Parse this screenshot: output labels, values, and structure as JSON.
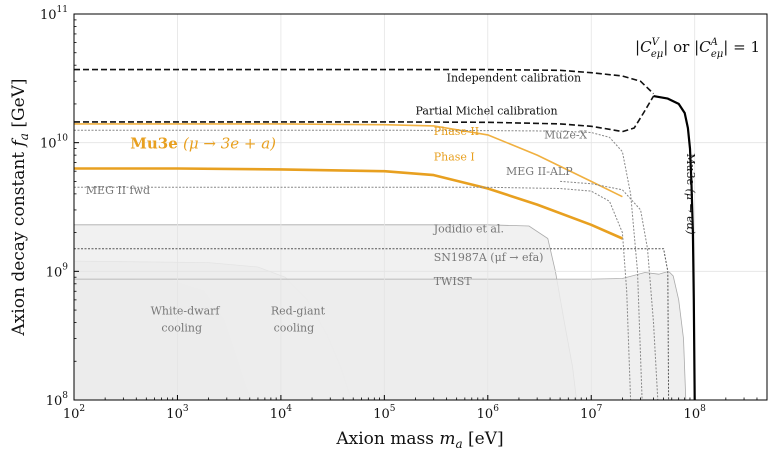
{
  "chart_data": {
    "type": "line",
    "title": "",
    "xlabel": "Axion mass m_a [eV]",
    "ylabel": "Axion decay constant f_a [GeV]",
    "xscale": "log",
    "yscale": "log",
    "xlim": [
      100,
      500000000
    ],
    "ylim": [
      100000000,
      100000000000
    ],
    "grid": true,
    "x_ticks": [
      {
        "value": 100,
        "base": "10",
        "exp": "2"
      },
      {
        "value": 1000,
        "base": "10",
        "exp": "3"
      },
      {
        "value": 10000,
        "base": "10",
        "exp": "4"
      },
      {
        "value": 100000,
        "base": "10",
        "exp": "5"
      },
      {
        "value": 1000000,
        "base": "10",
        "exp": "6"
      },
      {
        "value": 10000000,
        "base": "10",
        "exp": "7"
      },
      {
        "value": 100000000,
        "base": "10",
        "exp": "8"
      }
    ],
    "y_ticks": [
      {
        "value": 100000000,
        "base": "10",
        "exp": "8"
      },
      {
        "value": 1000000000,
        "base": "10",
        "exp": "9"
      },
      {
        "value": 10000000000,
        "base": "10",
        "exp": "10"
      },
      {
        "value": 100000000000,
        "base": "10",
        "exp": "11"
      }
    ],
    "coupling_note": "|C^V_eμ| or |C^A_eμ| = 1",
    "regions": [
      {
        "name": "White-dwarf cooling",
        "color": "#d2d2d2",
        "points": [
          [
            100,
            870000000
          ],
          [
            900,
            840000000
          ],
          [
            1800,
            700000000
          ],
          [
            2800,
            420000000
          ],
          [
            3800,
            200000000
          ],
          [
            4500,
            130000000
          ],
          [
            5200,
            100000000
          ]
        ]
      },
      {
        "name": "Red-giant cooling",
        "color": "#dcdcdc",
        "points": [
          [
            100,
            1200000000
          ],
          [
            2000,
            1170000000
          ],
          [
            6000,
            1080000000
          ],
          [
            11000,
            900000000
          ],
          [
            18000,
            600000000
          ],
          [
            28000,
            320000000
          ],
          [
            38000,
            180000000
          ],
          [
            48000,
            100000000
          ]
        ]
      },
      {
        "name": "Jodidio et al.",
        "color": "#efefef",
        "points": [
          [
            100,
            2300000000
          ],
          [
            1000000,
            2300000000
          ],
          [
            2500000,
            2250000000
          ],
          [
            3800000,
            1800000000
          ],
          [
            4500000,
            1000000000
          ],
          [
            5500000,
            400000000
          ],
          [
            6600000,
            180000000
          ],
          [
            7200000,
            100000000
          ]
        ]
      },
      {
        "name": "TWIST",
        "color": "#ececec",
        "points": [
          [
            100,
            870000000
          ],
          [
            10000000,
            870000000
          ],
          [
            20000000,
            880000000
          ],
          [
            33000000,
            980000000
          ],
          [
            45000000,
            950000000
          ],
          [
            56000000,
            1000000000
          ],
          [
            62000000,
            920000000
          ],
          [
            70000000,
            600000000
          ],
          [
            78000000,
            300000000
          ],
          [
            82000000,
            100000000
          ]
        ]
      }
    ],
    "series": [
      {
        "name": "Independent calibration",
        "style": "dashed",
        "color": "#111111",
        "x": [
          100,
          1000,
          10000,
          100000,
          1000000,
          5000000,
          10000000,
          20000000,
          30000000,
          40000000
        ],
        "y": [
          37000000000,
          37000000000,
          37000000000,
          37000000000,
          37000000000,
          36500000000,
          35000000000,
          33000000000,
          30000000000,
          24000000000
        ]
      },
      {
        "name": "Partial Michel calibration",
        "style": "dashed",
        "color": "#111111",
        "x": [
          100,
          1000,
          10000,
          100000,
          1000000,
          5000000,
          10000000,
          15000000,
          20000000,
          26000000,
          32000000,
          40000000
        ],
        "y": [
          14500000000,
          14500000000,
          14500000000,
          14500000000,
          14400000000,
          14000000000,
          13400000000,
          12700000000,
          12200000000,
          13000000000,
          17000000000,
          23000000000
        ]
      },
      {
        "name": "Mu3e (μ → eα)",
        "style": "solid",
        "color": "#000000",
        "x": [
          40000000,
          55000000,
          70000000,
          80000000,
          86000000,
          90000000,
          93000000,
          96000000,
          98000000,
          100000000
        ],
        "y": [
          23000000000,
          22000000000,
          20000000000,
          17000000000,
          13000000000,
          9000000000,
          5000000000,
          2000000000,
          600000000,
          100000000
        ]
      },
      {
        "name": "Phase II",
        "style": "solid",
        "color": "#f0b040",
        "x": [
          100,
          1000,
          10000,
          100000,
          300000,
          1000000,
          3000000,
          10000000,
          20000000
        ],
        "y": [
          14000000000,
          14000000000,
          14000000000,
          13800000000,
          13500000000,
          11500000000,
          8000000000,
          5000000000,
          3800000000
        ]
      },
      {
        "name": "Phase I",
        "style": "solid",
        "color": "#e8a020",
        "x": [
          100,
          1000,
          10000,
          100000,
          300000,
          1000000,
          3000000,
          10000000,
          20000000
        ],
        "y": [
          6300000000,
          6300000000,
          6200000000,
          6000000000,
          5600000000,
          4400000000,
          3300000000,
          2300000000,
          1800000000
        ]
      },
      {
        "name": "Mu2e-X",
        "style": "dotted",
        "color": "#888888",
        "x": [
          100,
          1000,
          10000,
          100000,
          1000000,
          5000000,
          10000000,
          15000000,
          20000000,
          24000000,
          28000000,
          31000000
        ],
        "y": [
          12500000000,
          12500000000,
          12500000000,
          12500000000,
          12400000000,
          12300000000,
          12000000000,
          11000000000,
          8500000000,
          4000000000,
          1000000000,
          100000000
        ]
      },
      {
        "name": "MEG II-ALP",
        "style": "dotted",
        "color": "#888888",
        "x": [
          5000000,
          10000000,
          20000000,
          30000000,
          35000000,
          40000000,
          44000000
        ],
        "y": [
          5000000000,
          4800000000,
          4300000000,
          3000000000,
          1500000000,
          400000000,
          100000000
        ]
      },
      {
        "name": "MEG II fwd",
        "style": "dotted",
        "color": "#888888",
        "x": [
          100,
          1000,
          10000,
          100000,
          1000000,
          5000000,
          10000000,
          15000000,
          20000000,
          22000000,
          24000000
        ],
        "y": [
          4500000000,
          4500000000,
          4500000000,
          4500000000,
          4500000000,
          4400000000,
          4200000000,
          3500000000,
          2000000000,
          700000000,
          100000000
        ]
      },
      {
        "name": "SN1987A (μf → efa)",
        "style": "dotted",
        "color": "#555555",
        "x": [
          100,
          1000,
          10000,
          100000,
          1000000,
          10000000,
          50000000,
          55000000,
          56000000
        ],
        "y": [
          1500000000,
          1500000000,
          1500000000,
          1500000000,
          1500000000,
          1500000000,
          1500000000,
          1000000000,
          100000000
        ]
      }
    ],
    "annotations": [
      {
        "text": "Independent calibration",
        "x": 400000,
        "y": 30000000000,
        "style": "dark"
      },
      {
        "text": "Partial Michel calibration",
        "x": 200000,
        "y": 16500000000,
        "style": "dark"
      },
      {
        "text": "Mu2e-X",
        "x": 3500000,
        "y": 10800000000,
        "style": "gray"
      },
      {
        "text": "Phase II",
        "x": 300000,
        "y": 11500000000,
        "style": "orange"
      },
      {
        "text": "Phase I",
        "x": 300000,
        "y": 7300000000,
        "style": "orange"
      },
      {
        "text": "MEG II-ALP",
        "x": 1500000,
        "y": 5600000000,
        "style": "gray"
      },
      {
        "text": "MEG II fwd",
        "x": 130,
        "y": 4000000000,
        "style": "gray"
      },
      {
        "text": "Jodidio et al.",
        "x": 300000,
        "y": 2000000000,
        "style": "gray"
      },
      {
        "text": "SN1987A (μf → efa)",
        "x": 300000,
        "y": 1200000000,
        "style": "gray"
      },
      {
        "text": "TWIST",
        "x": 300000,
        "y": 780000000,
        "style": "gray"
      },
      {
        "text": "White-dwarf",
        "x": 550,
        "y": 460000000,
        "style": "gray"
      },
      {
        "text": "cooling",
        "x": 700,
        "y": 340000000,
        "style": "gray"
      },
      {
        "text": "Red-giant",
        "x": 8000,
        "y": 460000000,
        "style": "gray"
      },
      {
        "text": "cooling",
        "x": 8500,
        "y": 340000000,
        "style": "gray"
      }
    ],
    "big_label": {
      "prefix": "Mu3e",
      "process": "(μ → 3e + a)",
      "x": 350,
      "y": 9000000000
    },
    "rotated_label": {
      "prefix": "Mu3e",
      "process": "(μ → eα)",
      "x": 110000000,
      "y": 4000000000
    }
  }
}
